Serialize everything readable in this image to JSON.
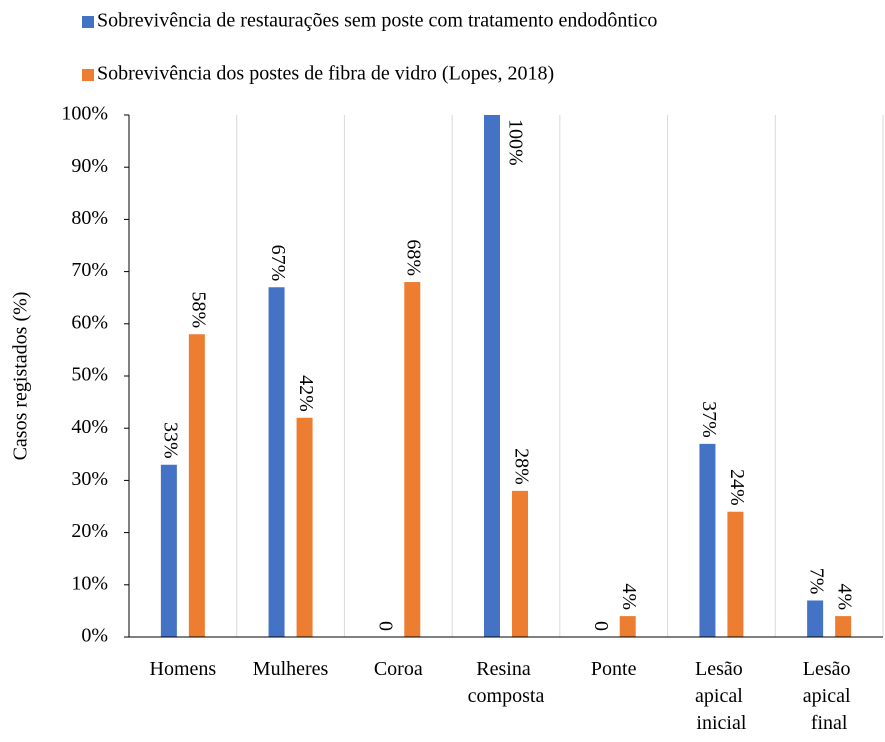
{
  "chart_data": {
    "type": "bar",
    "ylabel": "Casos registados (%)",
    "categories": [
      "Homens",
      "Mulheres",
      "Coroa",
      "Resina composta",
      "Ponte",
      "Lesão apical inicial",
      "Lesão apical final"
    ],
    "series": [
      {
        "name": "Sobrevivência de restaurações sem poste com tratamento endodôntico",
        "color": "#4472c4",
        "values": [
          33,
          67,
          0,
          100,
          0,
          37,
          7
        ],
        "value_labels": [
          "33%",
          "67%",
          "0",
          "100%",
          "0",
          "37%",
          "7%"
        ]
      },
      {
        "name": "Sobrevivência dos postes de fibra de vidro (Lopes, 2018)",
        "color": "#ed7d31",
        "values": [
          58,
          42,
          68,
          28,
          4,
          24,
          4
        ],
        "value_labels": [
          "58%",
          "42%",
          "68%",
          "28%",
          "4%",
          "24%",
          "4%"
        ]
      }
    ],
    "ylim": [
      0,
      100
    ],
    "yticks": [
      {
        "value": 0,
        "label": "0%"
      },
      {
        "value": 10,
        "label": "10%"
      },
      {
        "value": 20,
        "label": "20%"
      },
      {
        "value": 30,
        "label": "30%"
      },
      {
        "value": 40,
        "label": "40%"
      },
      {
        "value": 50,
        "label": "50%"
      },
      {
        "value": 60,
        "label": "60%"
      },
      {
        "value": 70,
        "label": "70%"
      },
      {
        "value": 80,
        "label": "80%"
      },
      {
        "value": 90,
        "label": "90%"
      },
      {
        "value": 100,
        "label": "100%"
      }
    ],
    "grid": true
  }
}
